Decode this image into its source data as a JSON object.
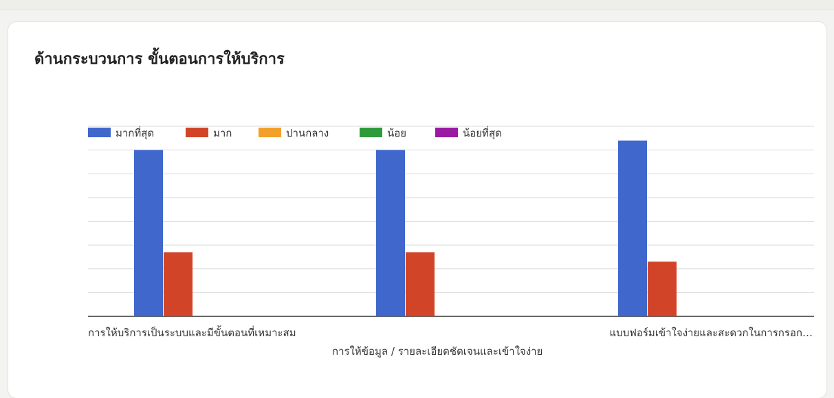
{
  "chart_data": {
    "type": "bar",
    "title": "ด้านกระบวนการ ขั้นตอนการให้บริการ",
    "categories": [
      "การให้บริการเป็นระบบและมีขั้นตอนที่เหมาะสม",
      "การให้ข้อมูล / รายละเอียดชัดเจนและเข้าใจง่าย",
      "แบบฟอร์มเข้าใจง่ายและสะดวกในการกรอก…"
    ],
    "series": [
      {
        "name": "มากที่สุด",
        "color": "#3f67cc",
        "values": [
          7,
          7,
          7.4
        ]
      },
      {
        "name": "มาก",
        "color": "#d24428",
        "values": [
          2.7,
          2.7,
          2.3
        ]
      },
      {
        "name": "ปานกลาง",
        "color": "#f2a02a",
        "values": [
          0,
          0,
          0
        ]
      },
      {
        "name": "น้อย",
        "color": "#2e9a3a",
        "values": [
          0,
          0,
          0
        ]
      },
      {
        "name": "น้อยที่สุด",
        "color": "#9a1aa3",
        "values": [
          0,
          0,
          0
        ]
      }
    ],
    "ylim": [
      0,
      8
    ],
    "grid": true,
    "legend": "top-left"
  }
}
